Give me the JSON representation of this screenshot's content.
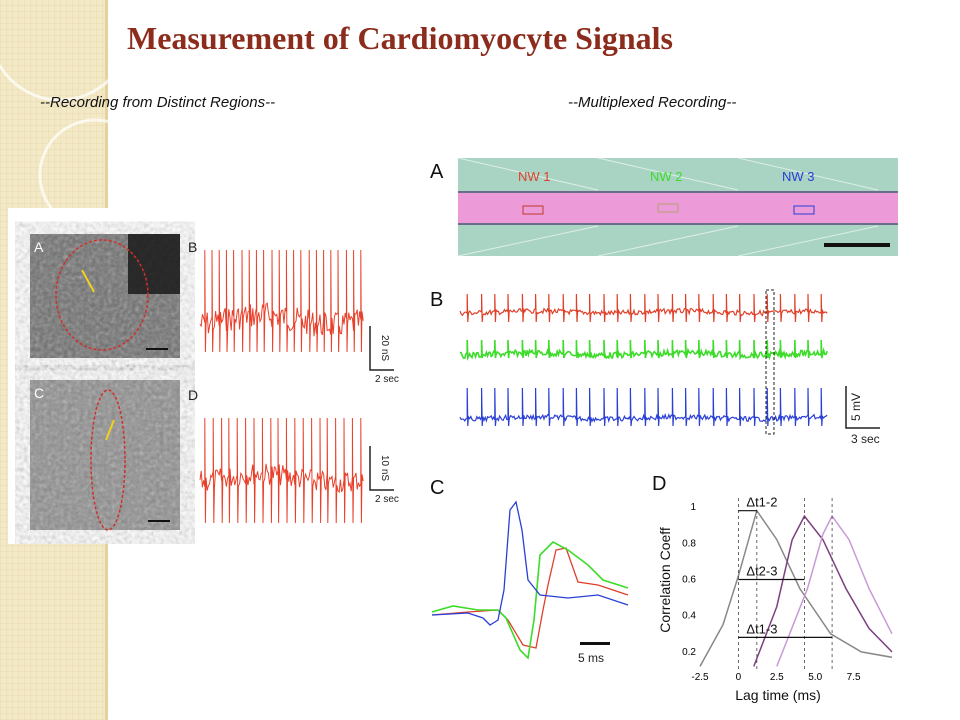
{
  "slide": {
    "title": "Measurement of Cardiomyocyte Signals",
    "left_heading": "--Recording from Distinct Regions--",
    "right_heading": "--Multiplexed Recording--"
  },
  "left_figure": {
    "labels": [
      "A",
      "B",
      "C",
      "D"
    ],
    "scale_b": {
      "y": "20 nS",
      "x": "2 sec"
    },
    "scale_d": {
      "y": "10 nS",
      "x": "2 sec"
    }
  },
  "right_figure": {
    "label_a": "A",
    "nw_labels": [
      "NW 1",
      "NW 2",
      "NW 3"
    ],
    "label_b": "B",
    "scale_b": {
      "y": "5 mV",
      "x": "3 sec"
    },
    "label_c": "C",
    "scale_c": "5 ms",
    "label_d": "D",
    "delta_labels": [
      "Δt1-2",
      "Δt2-3",
      "Δt1-3"
    ],
    "colors": {
      "nw1": "#e0402a",
      "nw2": "#3ddc2a",
      "nw3": "#2a3fd6",
      "trace": "#e8402a"
    }
  },
  "chart_data": {
    "type": "line",
    "xlabel": "Lag time (ms)",
    "ylabel": "Correlation Coeff",
    "x_ticks": [
      "-2.5",
      "0",
      "2.5",
      "5.0",
      "7.5"
    ],
    "y_ticks": [
      "0.2",
      "0.4",
      "0.6",
      "0.8",
      "1"
    ],
    "xlim": [
      -2.5,
      10
    ],
    "ylim": [
      0.1,
      1.05
    ],
    "series": [
      {
        "color": "#888888",
        "peak_x": 1.2,
        "points": [
          [
            -2.5,
            0.12
          ],
          [
            -1,
            0.35
          ],
          [
            0,
            0.62
          ],
          [
            1.2,
            0.98
          ],
          [
            2.5,
            0.82
          ],
          [
            4,
            0.55
          ],
          [
            6,
            0.3
          ],
          [
            8,
            0.2
          ],
          [
            10,
            0.17
          ]
        ]
      },
      {
        "color": "#7d3f7f",
        "peak_x": 4.3,
        "points": [
          [
            1,
            0.12
          ],
          [
            2.5,
            0.45
          ],
          [
            3.5,
            0.82
          ],
          [
            4.3,
            0.95
          ],
          [
            5.5,
            0.82
          ],
          [
            7,
            0.55
          ],
          [
            8.5,
            0.33
          ],
          [
            10,
            0.2
          ]
        ]
      },
      {
        "color": "#c79ad6",
        "peak_x": 6.1,
        "points": [
          [
            2.5,
            0.12
          ],
          [
            4.5,
            0.55
          ],
          [
            5.5,
            0.85
          ],
          [
            6.1,
            0.95
          ],
          [
            7.2,
            0.82
          ],
          [
            8.5,
            0.55
          ],
          [
            10,
            0.3
          ]
        ]
      }
    ]
  }
}
